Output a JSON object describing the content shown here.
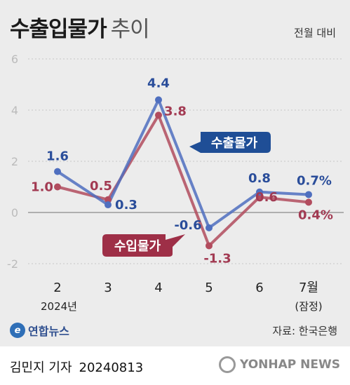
{
  "header": {
    "title": "수출입물가",
    "title_suffix": "추이",
    "basis": "전월 대비"
  },
  "brand": {
    "logo_text": "연합뉴스",
    "logo_mark": "e"
  },
  "source": "자료: 한국은행",
  "footer": {
    "author": "김민지 기자",
    "date": "20240813",
    "agency": "YONHAP NEWS"
  },
  "colors": {
    "export": "#4f6fbf",
    "import": "#b24c5e",
    "export_label_bg": "#1f4e96",
    "import_label_bg": "#9e2f47",
    "background": "#ececec"
  },
  "chart_data": {
    "type": "line",
    "categories": [
      "2",
      "3",
      "4",
      "5",
      "6",
      "7월"
    ],
    "category_sublabels": [
      "2024년",
      "",
      "",
      "",
      "",
      "(잠정)"
    ],
    "ylim": [
      -2,
      6
    ],
    "yticks": [
      -2,
      0,
      2,
      4,
      6
    ],
    "grid": true,
    "series": [
      {
        "name": "수출물가",
        "values": [
          1.6,
          0.3,
          4.4,
          -0.6,
          0.8,
          0.7
        ],
        "labels": [
          "1.6",
          "0.3",
          "4.4",
          "-0.6",
          "0.8",
          "0.7%"
        ]
      },
      {
        "name": "수입물가",
        "values": [
          1.0,
          0.5,
          3.8,
          -1.3,
          0.6,
          0.4
        ],
        "labels": [
          "1.0",
          "0.5",
          "3.8",
          "-1.3",
          "0.6",
          "0.4%"
        ]
      }
    ]
  }
}
